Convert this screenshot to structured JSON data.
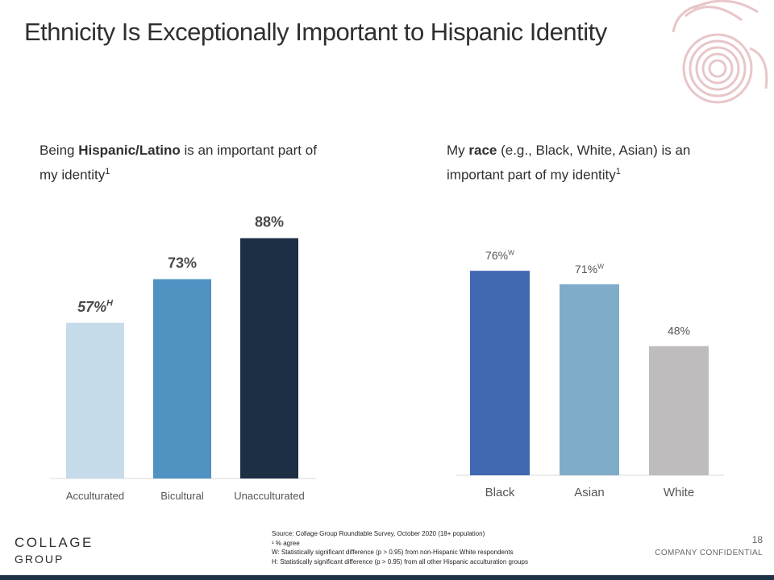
{
  "slide": {
    "title": "Ethnicity Is Exceptionally Important to Hispanic Identity",
    "page_number": "18",
    "confidential": "COMPANY CONFIDENTIAL",
    "logo_line1": "COLLAGE",
    "logo_line2": "GROUP",
    "footnotes": [
      "Source: Collage Group Roundtable Survey, October 2020 (18+ population)",
      "¹ % agree",
      "W: Statistically significant difference (p > 0.95) from non-Hispanic White respondents",
      "H: Statistically significant difference (p > 0.95) from all other Hispanic acculturation groups"
    ]
  },
  "left_subtitle": {
    "pre": "Being ",
    "bold": "Hispanic/Latino",
    "post": "  is an important part of my identity",
    "sup": "1"
  },
  "right_subtitle": {
    "pre": "My ",
    "bold": "race",
    "post": " (e.g., Black, White, Asian) is an important part of my identity",
    "sup": "1"
  },
  "chart_data": [
    {
      "type": "bar",
      "title": "",
      "categories": [
        "Acculturated",
        "Bicultural",
        "Unacculturated"
      ],
      "values": [
        57,
        73,
        88
      ],
      "labels": [
        "57%",
        "73%",
        "88%"
      ],
      "label_superscripts": [
        "H",
        "",
        ""
      ],
      "colors": [
        "#c5dbea",
        "#5092c2",
        "#1c2f45"
      ],
      "ylim": [
        0,
        100
      ],
      "grid": false,
      "legend": "none"
    },
    {
      "type": "bar",
      "title": "",
      "categories": [
        "Black",
        "Asian",
        "White"
      ],
      "values": [
        76,
        71,
        48
      ],
      "labels": [
        "76%",
        "71%",
        "48%"
      ],
      "label_superscripts": [
        "W",
        "W",
        ""
      ],
      "colors": [
        "#4169b1",
        "#7facc8",
        "#bfbcbd"
      ],
      "ylim": [
        0,
        100
      ],
      "grid": false,
      "legend": "none"
    }
  ]
}
